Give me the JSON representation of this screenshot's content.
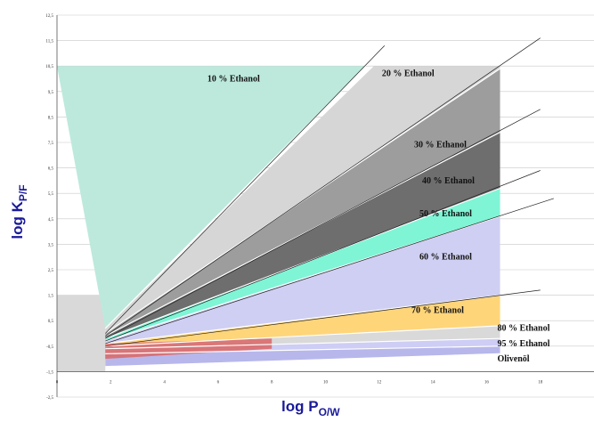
{
  "chart_data": {
    "type": "area",
    "xlabel": "log P",
    "xlabel_sub": "O/W",
    "ylabel": "log K",
    "ylabel_sub": "P/F",
    "xlim": [
      0,
      20
    ],
    "ylim": [
      -2.5,
      12.5
    ],
    "x_ticks": [
      "0",
      "2",
      "4",
      "6",
      "8",
      "10",
      "12",
      "14",
      "16",
      "18"
    ],
    "y_ticks": [
      "12,5",
      "11,5",
      "10,5",
      "9,5",
      "8,5",
      "7,5",
      "6,5",
      "5,5",
      "4,5",
      "3,5",
      "2,5",
      "1,5",
      "0,5",
      "-0,5",
      "-1,5",
      "-2,5"
    ],
    "grid": true,
    "series": [
      {
        "name": "10 % Ethanol",
        "color": "#bde9dc",
        "lower": [
          [
            1.8,
            0.2
          ],
          [
            11.5,
            10.5
          ]
        ],
        "upper": [
          [
            0,
            10.5
          ],
          [
            11.5,
            10.5
          ]
        ]
      },
      {
        "name": "20 % Ethanol",
        "color": "#d6d6d6",
        "lower": [
          [
            1.8,
            0.0
          ],
          [
            16.5,
            10.4
          ]
        ],
        "upper": [
          [
            1.8,
            0.2
          ],
          [
            11.8,
            10.5
          ],
          [
            16.5,
            10.5
          ]
        ]
      },
      {
        "name": "30 % Ethanol",
        "color": "#9d9d9d",
        "lower": [
          [
            1.8,
            -0.1
          ],
          [
            16.5,
            7.9
          ]
        ],
        "upper": [
          [
            1.8,
            0.0
          ],
          [
            16.5,
            10.4
          ]
        ]
      },
      {
        "name": "40 % Ethanol",
        "color": "#6e6e6e",
        "lower": [
          [
            1.8,
            -0.2
          ],
          [
            16.5,
            5.7
          ]
        ],
        "upper": [
          [
            1.8,
            -0.1
          ],
          [
            16.5,
            7.9
          ]
        ]
      },
      {
        "name": "50 % Ethanol",
        "color": "#7ff5d6",
        "lower": [
          [
            1.8,
            -0.3
          ],
          [
            16.5,
            4.6
          ]
        ],
        "upper": [
          [
            1.8,
            -0.2
          ],
          [
            16.5,
            5.7
          ]
        ]
      },
      {
        "name": "60 % Ethanol",
        "color": "#cfcff3",
        "lower": [
          [
            1.8,
            -0.4
          ],
          [
            16.5,
            1.5
          ]
        ],
        "upper": [
          [
            1.8,
            -0.3
          ],
          [
            16.5,
            4.6
          ]
        ]
      },
      {
        "name": "70 % Ethanol",
        "color": "#ffd57a",
        "lower": [
          [
            1.8,
            -0.5
          ],
          [
            16.5,
            0.3
          ]
        ],
        "upper": [
          [
            1.8,
            -0.4
          ],
          [
            16.5,
            1.5
          ]
        ]
      },
      {
        "name": "80 % Ethanol",
        "color": "#d9d9d9",
        "lower": [
          [
            1.8,
            -0.6
          ],
          [
            16.5,
            -0.2
          ]
        ],
        "upper": [
          [
            1.8,
            -0.5
          ],
          [
            16.5,
            0.3
          ]
        ]
      },
      {
        "name": "95 % Ethanol",
        "color": "#cdcdf5",
        "lower": [
          [
            1.8,
            -0.8
          ],
          [
            16.5,
            -0.5
          ]
        ],
        "upper": [
          [
            1.8,
            -0.6
          ],
          [
            16.5,
            -0.2
          ]
        ]
      },
      {
        "name": "Olivenöl",
        "color": "#b7b7ec",
        "lower": [
          [
            1.8,
            -1.3
          ],
          [
            16.5,
            -0.8
          ]
        ],
        "upper": [
          [
            1.8,
            -0.8
          ],
          [
            16.5,
            -0.5
          ]
        ]
      }
    ],
    "extra_regions": [
      {
        "color": "#d9d9d9",
        "polygon": [
          [
            0,
            1.5
          ],
          [
            1.8,
            1.5
          ],
          [
            1.8,
            -1.5
          ],
          [
            0,
            -1.5
          ]
        ]
      },
      {
        "color": "#d96b6b",
        "polygon": [
          [
            1.8,
            -0.4
          ],
          [
            8,
            -0.2
          ],
          [
            8,
            -0.6
          ],
          [
            1.8,
            -1.0
          ]
        ]
      }
    ],
    "extension_lines": [
      [
        [
          1.8,
          0.0
        ],
        [
          12.2,
          11.3
        ]
      ],
      [
        [
          1.8,
          -0.1
        ],
        [
          18.0,
          11.6
        ]
      ],
      [
        [
          1.8,
          -0.2
        ],
        [
          18.0,
          8.8
        ]
      ],
      [
        [
          1.8,
          -0.3
        ],
        [
          18.0,
          6.4
        ]
      ],
      [
        [
          1.8,
          -0.4
        ],
        [
          18.5,
          5.3
        ]
      ],
      [
        [
          1.8,
          -0.5
        ],
        [
          18.0,
          1.7
        ]
      ]
    ],
    "annotations": [
      {
        "text": "10 % Ethanol",
        "x": 5.6,
        "y": 9.9
      },
      {
        "text": "20 % Ethanol",
        "x": 12.1,
        "y": 10.1
      },
      {
        "text": "30 % Ethanol",
        "x": 13.3,
        "y": 7.3
      },
      {
        "text": "40 % Ethanol",
        "x": 13.6,
        "y": 5.9
      },
      {
        "text": "50 % Ethanol",
        "x": 13.5,
        "y": 4.6
      },
      {
        "text": "60 % Ethanol",
        "x": 13.5,
        "y": 2.9
      },
      {
        "text": "70 % Ethanol",
        "x": 13.2,
        "y": 0.8
      },
      {
        "text": "80 % Ethanol",
        "x": 16.4,
        "y": 0.1
      },
      {
        "text": "95 % Ethanol",
        "x": 16.4,
        "y": -0.5
      },
      {
        "text": "Olivenöl",
        "x": 16.4,
        "y": -1.1
      }
    ]
  }
}
